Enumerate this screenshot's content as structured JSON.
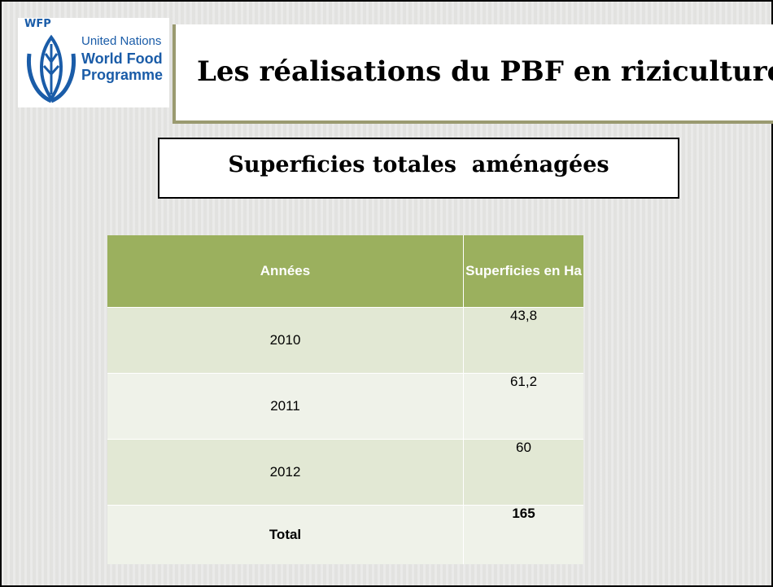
{
  "logo": {
    "acronym": "WFP",
    "line1": "United Nations",
    "line2": "World Food",
    "line3": "Programme"
  },
  "title": "Les réalisations du PBF en riziculture",
  "subtitle": "Superficies totales  aménagées",
  "table": {
    "header": [
      "Années",
      "Superficies en Ha"
    ],
    "rows": [
      [
        "2010",
        "43,8"
      ],
      [
        "2011",
        "61,2"
      ],
      [
        "2012",
        "60"
      ],
      [
        "Total",
        "165"
      ]
    ]
  }
}
